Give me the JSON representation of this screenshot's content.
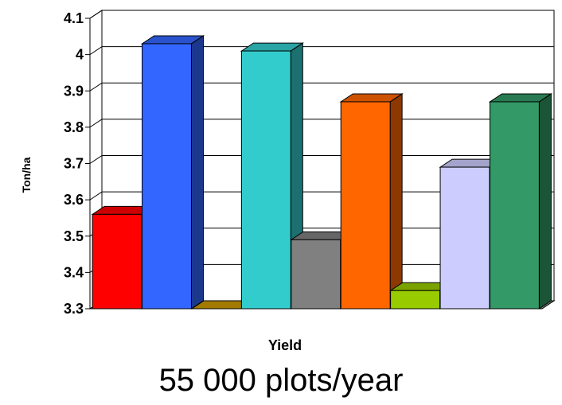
{
  "chart_data": {
    "type": "bar",
    "title": "",
    "xlabel": "Yield",
    "ylabel": "Ton/ha",
    "ylim": [
      3.3,
      4.1
    ],
    "yticks": [
      "3.3",
      "3.4",
      "3.5",
      "3.6",
      "3.7",
      "3.8",
      "3.9",
      "4",
      "4.1"
    ],
    "grid": true,
    "legend": "none",
    "three_d": true,
    "values": [
      3.56,
      4.03,
      3.3,
      4.01,
      3.49,
      3.87,
      3.35,
      3.69,
      3.87
    ],
    "colors": [
      "#ff0000",
      "#3366ff",
      "#cc9900",
      "#33cccc",
      "#808080",
      "#ff6600",
      "#99cc00",
      "#ccccff",
      "#339966"
    ]
  },
  "caption": "55 000 plots/year"
}
